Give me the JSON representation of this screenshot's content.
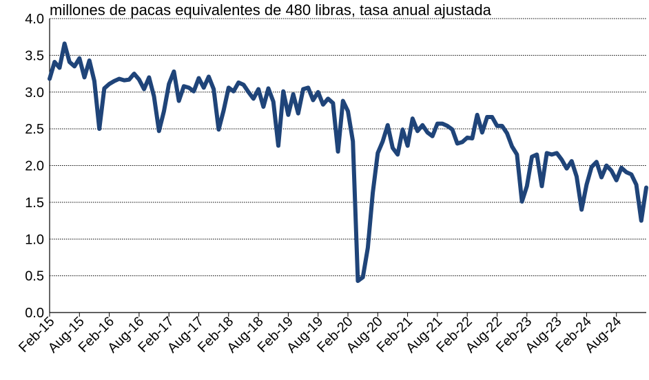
{
  "chart_data": {
    "type": "line",
    "title": "millones de pacas equivalentes de 480 libras, tasa anual ajustada",
    "categories": [
      "Feb-15",
      null,
      null,
      null,
      null,
      null,
      "Aug-15",
      null,
      null,
      null,
      null,
      null,
      "Feb-16",
      null,
      null,
      null,
      null,
      null,
      "Aug-16",
      null,
      null,
      null,
      null,
      null,
      "Feb-17",
      null,
      null,
      null,
      null,
      null,
      "Aug-17",
      null,
      null,
      null,
      null,
      null,
      "Feb-18",
      null,
      null,
      null,
      null,
      null,
      "Aug-18",
      null,
      null,
      null,
      null,
      null,
      "Feb-19",
      null,
      null,
      null,
      null,
      null,
      "Aug-19",
      null,
      null,
      null,
      null,
      null,
      "Feb-20",
      null,
      null,
      null,
      null,
      null,
      "Aug-20",
      null,
      null,
      null,
      null,
      null,
      "Feb-21",
      null,
      null,
      null,
      null,
      null,
      "Aug-21",
      null,
      null,
      null,
      null,
      null,
      "Feb-22",
      null,
      null,
      null,
      null,
      null,
      "Aug-22",
      null,
      null,
      null,
      null,
      null,
      "Feb-23",
      null,
      null,
      null,
      null,
      null,
      "Aug-23",
      null,
      null,
      null,
      null,
      null,
      "Feb-24",
      null,
      null,
      null,
      null,
      null,
      "Aug-24",
      null,
      null,
      null,
      null,
      null,
      null
    ],
    "values": [
      3.18,
      3.41,
      3.33,
      3.66,
      3.41,
      3.35,
      3.46,
      3.2,
      3.43,
      3.15,
      2.5,
      3.05,
      3.11,
      3.15,
      3.18,
      3.16,
      3.17,
      3.25,
      3.17,
      3.04,
      3.2,
      2.94,
      2.47,
      2.74,
      3.11,
      3.28,
      2.88,
      3.08,
      3.06,
      3.01,
      3.19,
      3.06,
      3.21,
      3.04,
      2.49,
      2.75,
      3.06,
      3.01,
      3.13,
      3.1,
      3.0,
      2.91,
      3.04,
      2.8,
      3.05,
      2.87,
      2.27,
      3.01,
      2.69,
      2.97,
      2.71,
      3.04,
      3.06,
      2.89,
      3.0,
      2.83,
      2.91,
      2.85,
      2.19,
      2.88,
      2.74,
      2.33,
      0.43,
      0.48,
      0.88,
      1.63,
      2.17,
      2.33,
      2.55,
      2.24,
      2.15,
      2.49,
      2.27,
      2.64,
      2.47,
      2.55,
      2.45,
      2.4,
      2.57,
      2.57,
      2.54,
      2.49,
      2.3,
      2.32,
      2.38,
      2.37,
      2.69,
      2.45,
      2.66,
      2.66,
      2.54,
      2.54,
      2.44,
      2.26,
      2.15,
      1.51,
      1.72,
      2.12,
      2.15,
      1.72,
      2.17,
      2.15,
      2.17,
      2.08,
      1.96,
      2.06,
      1.85,
      1.4,
      1.74,
      1.98,
      2.05,
      1.84,
      2.0,
      1.93,
      1.8,
      1.97,
      1.91,
      1.88,
      1.74,
      1.25,
      1.7
    ],
    "color": "#1f4479",
    "ylim": [
      0,
      4
    ],
    "yticks": [
      {
        "value": 0,
        "label": "0.0"
      },
      0.5,
      {
        "value": 1,
        "label": "1.0"
      },
      1.5,
      {
        "value": 2,
        "label": "2.0"
      },
      2.5,
      {
        "value": 3,
        "label": "3.0"
      },
      3.5,
      {
        "value": 4,
        "label": "4.0"
      }
    ],
    "grid": true
  }
}
